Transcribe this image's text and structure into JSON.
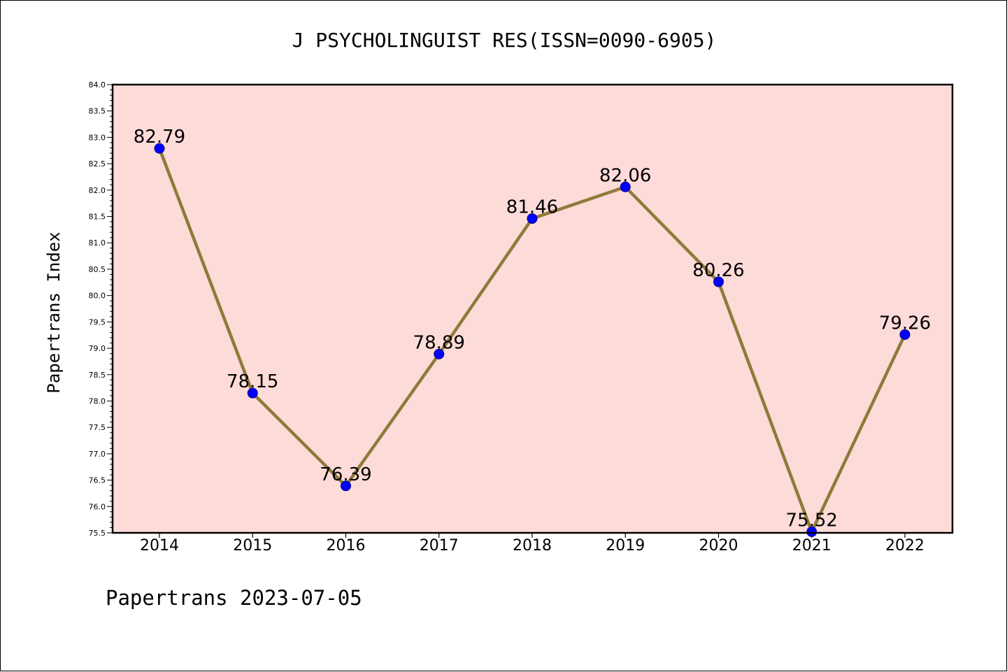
{
  "chart_data": {
    "type": "line",
    "title": "J PSYCHOLINGUIST RES(ISSN=0090-6905)",
    "xlabel": "",
    "ylabel": "Papertrans Index",
    "categories": [
      "2014",
      "2015",
      "2016",
      "2017",
      "2018",
      "2019",
      "2020",
      "2021",
      "2022"
    ],
    "series": [
      {
        "values": [
          82.79,
          78.15,
          76.39,
          78.89,
          81.46,
          82.06,
          80.26,
          75.52,
          79.26
        ],
        "data_labels": [
          "82.79",
          "78.15",
          "76.39",
          "78.89",
          "81.46",
          "82.06",
          "80.26",
          "75.52",
          "79.26"
        ]
      }
    ],
    "ylim": [
      75.5,
      84.0
    ],
    "yticks": [
      "75.5",
      "76.0",
      "76.5",
      "77.0",
      "77.5",
      "78.0",
      "78.5",
      "79.0",
      "79.5",
      "80.0",
      "80.5",
      "81.0",
      "81.5",
      "82.0",
      "82.5",
      "83.0",
      "83.5",
      "84.0"
    ],
    "grid": false,
    "colors": {
      "plot_background": "#fddbd8",
      "line": "#8f7a3b",
      "marker": "#0000ff"
    }
  },
  "footer": "Papertrans 2023-07-05"
}
